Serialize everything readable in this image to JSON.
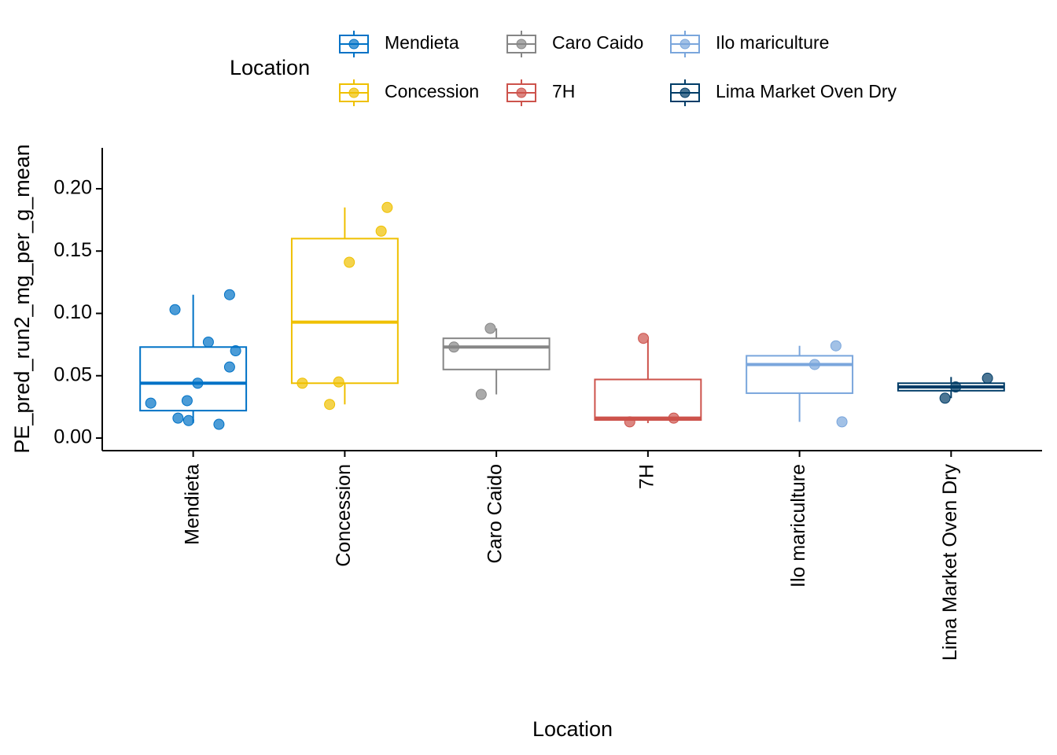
{
  "chart_data": {
    "type": "box",
    "x_label": "Location",
    "y_label": "PE_pred_run2_mg_per_g_mean",
    "legend_title": "Location",
    "legend_position": "top",
    "categories": [
      "Mendieta",
      "Concession",
      "Caro Caido",
      "7H",
      "Ilo mariculture",
      "Lima Market Oven Dry"
    ],
    "ylim": [
      -0.0101,
      0.2328
    ],
    "yticks": [
      {
        "value": 0,
        "label": "0.00"
      },
      {
        "value": 0.05,
        "label": "0.05"
      },
      {
        "value": 0.1,
        "label": "0.10"
      },
      {
        "value": 0.15,
        "label": "0.15"
      },
      {
        "value": 0.2,
        "label": "0.20"
      }
    ],
    "series": [
      {
        "name": "Mendieta",
        "color": "#0072c6",
        "whisker_low": 0.012,
        "q1": 0.022,
        "median": 0.044,
        "q3": 0.073,
        "whisker_high": 0.115,
        "points": [
          0.103,
          0.115,
          0.077,
          0.07,
          0.057,
          0.044,
          0.03,
          0.028,
          0.016,
          0.014,
          0.011
        ]
      },
      {
        "name": "Concession",
        "color": "#efc000",
        "whisker_low": 0.027,
        "q1": 0.044,
        "median": 0.093,
        "q3": 0.16,
        "whisker_high": 0.185,
        "points": [
          0.185,
          0.166,
          0.141,
          0.045,
          0.044,
          0.027
        ]
      },
      {
        "name": "Caro Caido",
        "color": "#868686",
        "whisker_low": 0.035,
        "q1": 0.055,
        "median": 0.073,
        "q3": 0.08,
        "whisker_high": 0.088,
        "points": [
          0.088,
          0.073,
          0.035
        ]
      },
      {
        "name": "7H",
        "color": "#cd534c",
        "whisker_low": 0.012,
        "q1": 0.0145,
        "median": 0.016,
        "q3": 0.047,
        "whisker_high": 0.079,
        "points": [
          0.08,
          0.016,
          0.013
        ]
      },
      {
        "name": "Ilo mariculture",
        "color": "#7aa6dc",
        "whisker_low": 0.013,
        "q1": 0.036,
        "median": 0.059,
        "q3": 0.066,
        "whisker_high": 0.074,
        "points": [
          0.074,
          0.059,
          0.013
        ]
      },
      {
        "name": "Lima Market Oven Dry",
        "color": "#003c67",
        "whisker_low": 0.032,
        "q1": 0.038,
        "median": 0.041,
        "q3": 0.044,
        "whisker_high": 0.049,
        "points": [
          0.048,
          0.041,
          0.032
        ]
      }
    ]
  }
}
